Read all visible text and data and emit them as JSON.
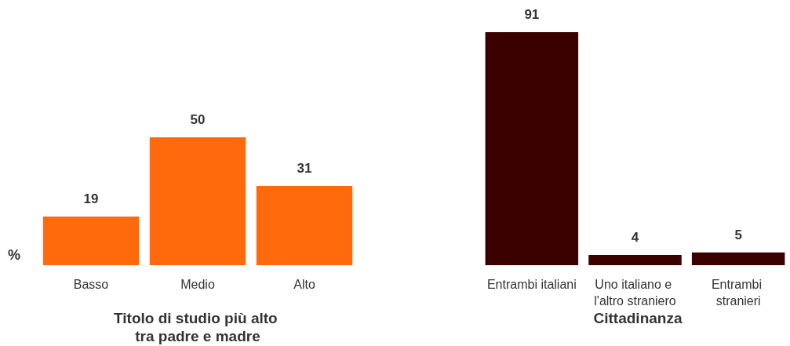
{
  "chart_data": [
    {
      "type": "bar",
      "xlabel": "Titolo di studio più alto tra padre e madre",
      "ylabel": "%",
      "categories": [
        "Basso",
        "Medio",
        "Alto"
      ],
      "values": [
        19,
        50,
        31
      ],
      "color": "#ff6a0d",
      "data_labels": true,
      "tick_labels": "x"
    },
    {
      "type": "bar",
      "xlabel": "Cittadinanza",
      "categories": [
        "Entrambi italiani",
        "Uno italiano e l'altro straniero",
        "Entrambi stranieri"
      ],
      "values": [
        91,
        4,
        5
      ],
      "color": "#3b0000",
      "data_labels": true,
      "tick_labels": "x"
    }
  ]
}
